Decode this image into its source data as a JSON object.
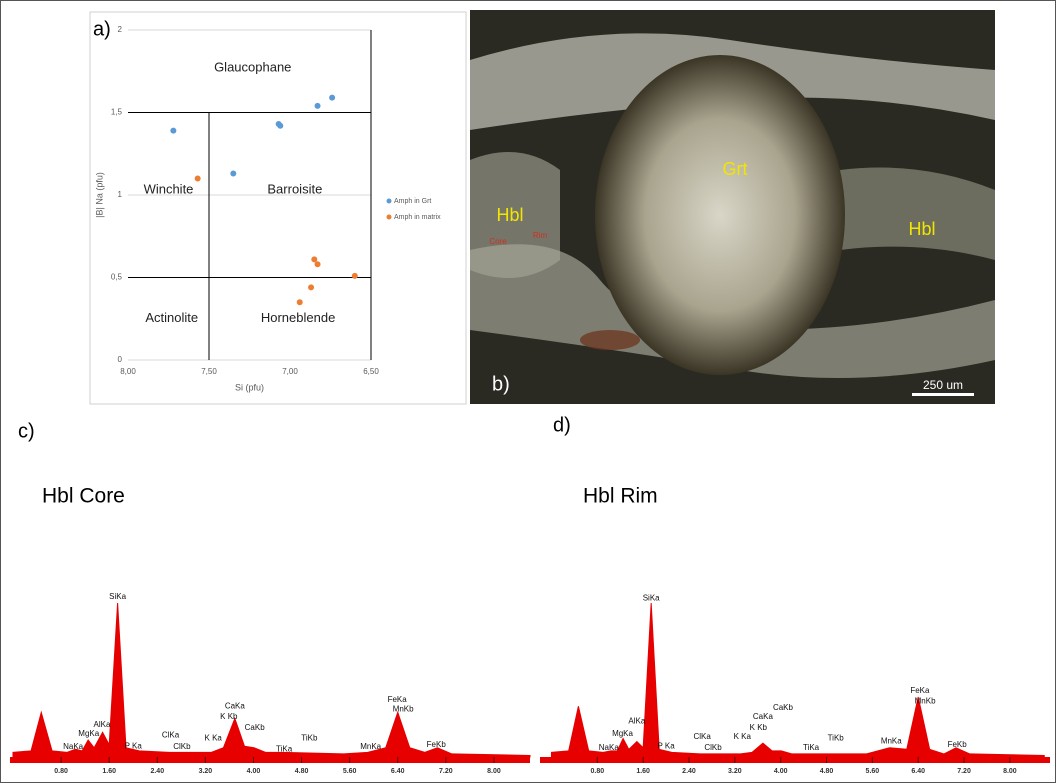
{
  "chart_data": [
    {
      "type": "scatter",
      "panel": "a)",
      "xlabel": "Si (pfu)",
      "ylabel": "|B| Na (pfu)",
      "xlim": [
        8,
        6.5
      ],
      "xticks": [
        {
          "value": 8,
          "label": "8,00"
        },
        {
          "value": 7.5,
          "label": "7,50"
        },
        {
          "value": 7,
          "label": "7,00"
        },
        {
          "value": 6.5,
          "label": "6,50"
        }
      ],
      "ylim": [
        0,
        2
      ],
      "yticks": [
        0,
        {
          "value": 0.5,
          "label": "0,5"
        },
        1,
        {
          "value": 1.5,
          "label": "1,5"
        },
        2
      ],
      "grid": true,
      "legend": "right",
      "annotations": [
        {
          "text": "Glaucophane",
          "x": 7.23,
          "y": 1.77
        },
        {
          "text": "Winchite",
          "x": 7.75,
          "y": 1.03
        },
        {
          "text": "Barroisite",
          "x": 6.97,
          "y": 1.03
        },
        {
          "text": "Actinolite",
          "x": 7.73,
          "y": 0.25
        },
        {
          "text": "Horneblende",
          "x": 6.95,
          "y": 0.25
        }
      ],
      "series": [
        {
          "name": "Amph in Grt",
          "color": "#5b9bd5",
          "x": [
            7.72,
            7.35,
            7.07,
            7.06,
            6.83,
            6.74
          ],
          "values": [
            1.39,
            1.13,
            1.43,
            1.42,
            1.54,
            1.59
          ]
        },
        {
          "name": "Amph in matrix",
          "color": "#ed7d31",
          "x": [
            7.57,
            6.85,
            6.83,
            6.6,
            6.87,
            6.94
          ],
          "values": [
            1.1,
            0.61,
            0.58,
            0.51,
            0.44,
            0.35
          ]
        }
      ]
    },
    {
      "type": "spectrum",
      "panel": "c)",
      "title": "Hbl Core",
      "color": "#e60000",
      "xlim": [
        -0.05,
        8.6
      ],
      "xticks": [
        {
          "value": 0.8,
          "label": "0.80"
        },
        {
          "value": 1.6,
          "label": "1.60"
        },
        {
          "value": 2.4,
          "label": "2.40"
        },
        {
          "value": 3.2,
          "label": "3.20"
        },
        {
          "value": 4,
          "label": "4.00"
        },
        {
          "value": 4.8,
          "label": "4.80"
        },
        {
          "value": 5.6,
          "label": "5.60"
        },
        {
          "value": 6.4,
          "label": "6.40"
        },
        {
          "value": 7.2,
          "label": "7.20"
        },
        {
          "value": 8,
          "label": "8.00"
        }
      ],
      "ylim": [
        0,
        100
      ],
      "x": [
        0,
        0.3,
        0.47,
        0.65,
        0.9,
        1.04,
        1.15,
        1.25,
        1.35,
        1.49,
        1.6,
        1.74,
        1.88,
        2.1,
        2.6,
        3.3,
        3.5,
        3.69,
        3.85,
        4.01,
        4.2,
        4.5,
        5.5,
        5.9,
        6.2,
        6.4,
        6.6,
        6.85,
        7.06,
        7.3,
        8.6
      ],
      "values": [
        3,
        4,
        29,
        4,
        3,
        5,
        4,
        11,
        6,
        16,
        8,
        100,
        6,
        4,
        3,
        3,
        6,
        25,
        7,
        6,
        3,
        3,
        2,
        3,
        6,
        29,
        6,
        3,
        6,
        2,
        1
      ],
      "peak_labels": [
        {
          "text": "NaKa",
          "x": 1.0,
          "y": 6.5
        },
        {
          "text": "MgKa",
          "x": 1.26,
          "y": 15
        },
        {
          "text": "AlKa",
          "x": 1.48,
          "y": 21
        },
        {
          "text": "SiKa",
          "x": 1.74,
          "y": 104
        },
        {
          "text": "P Ka",
          "x": 2.0,
          "y": 7
        },
        {
          "text": "ClKa",
          "x": 2.62,
          "y": 14
        },
        {
          "text": "ClKb",
          "x": 2.81,
          "y": 6.5
        },
        {
          "text": "K Ka",
          "x": 3.33,
          "y": 12
        },
        {
          "text": "CaKa",
          "x": 3.69,
          "y": 33
        },
        {
          "text": "K Kb",
          "x": 3.59,
          "y": 26
        },
        {
          "text": "CaKb",
          "x": 4.02,
          "y": 19
        },
        {
          "text": "TiKa",
          "x": 4.51,
          "y": 5
        },
        {
          "text": "TiKb",
          "x": 4.93,
          "y": 12
        },
        {
          "text": "MnKa",
          "x": 5.95,
          "y": 6.5
        },
        {
          "text": "FeKa",
          "x": 6.39,
          "y": 37
        },
        {
          "text": "MnKb",
          "x": 6.49,
          "y": 31
        },
        {
          "text": "FeKb",
          "x": 7.04,
          "y": 8
        }
      ]
    },
    {
      "type": "spectrum",
      "panel": "d)",
      "title": "Hbl Rim",
      "color": "#e60000",
      "xlim": [
        -0.2,
        8.7
      ],
      "xticks": [
        {
          "value": 0.8,
          "label": "0.80"
        },
        {
          "value": 1.6,
          "label": "1.60"
        },
        {
          "value": 2.4,
          "label": "2.40"
        },
        {
          "value": 3.2,
          "label": "3.20"
        },
        {
          "value": 4,
          "label": "4.00"
        },
        {
          "value": 4.8,
          "label": "4.80"
        },
        {
          "value": 5.6,
          "label": "5.60"
        },
        {
          "value": 6.4,
          "label": "6.40"
        },
        {
          "value": 7.2,
          "label": "7.20"
        },
        {
          "value": 8,
          "label": "8.00"
        }
      ],
      "ylim": [
        0,
        100
      ],
      "x": [
        0,
        0.3,
        0.47,
        0.65,
        0.9,
        1.04,
        1.15,
        1.25,
        1.35,
        1.49,
        1.6,
        1.74,
        1.88,
        2.1,
        2.6,
        3.3,
        3.5,
        3.69,
        3.85,
        4.01,
        4.2,
        4.5,
        5.5,
        5.9,
        6.2,
        6.4,
        6.6,
        6.85,
        7.06,
        7.3,
        8.6
      ],
      "values": [
        3,
        4,
        33,
        4,
        3,
        4,
        4,
        12,
        5,
        10,
        6,
        100,
        5,
        3,
        2,
        2,
        3,
        9,
        4,
        4,
        2,
        2,
        2,
        6,
        5,
        39,
        5,
        2,
        6,
        2,
        1
      ],
      "peak_labels": [
        {
          "text": "NaKa",
          "x": 1.0,
          "y": 6
        },
        {
          "text": "MgKa",
          "x": 1.24,
          "y": 15
        },
        {
          "text": "AlKa",
          "x": 1.49,
          "y": 23
        },
        {
          "text": "SiKa",
          "x": 1.74,
          "y": 103
        },
        {
          "text": "P Ka",
          "x": 2.0,
          "y": 7
        },
        {
          "text": "ClKa",
          "x": 2.63,
          "y": 13
        },
        {
          "text": "ClKb",
          "x": 2.82,
          "y": 6
        },
        {
          "text": "K Ka",
          "x": 3.33,
          "y": 13
        },
        {
          "text": "CaKa",
          "x": 3.69,
          "y": 26
        },
        {
          "text": "K Kb",
          "x": 3.61,
          "y": 19
        },
        {
          "text": "CaKb",
          "x": 4.04,
          "y": 32
        },
        {
          "text": "TiKa",
          "x": 4.53,
          "y": 6
        },
        {
          "text": "TiKb",
          "x": 4.96,
          "y": 12
        },
        {
          "text": "MnKa",
          "x": 5.93,
          "y": 10
        },
        {
          "text": "FeKa",
          "x": 6.43,
          "y": 43
        },
        {
          "text": "MnKb",
          "x": 6.52,
          "y": 36
        },
        {
          "text": "FeKb",
          "x": 7.08,
          "y": 8
        }
      ]
    }
  ],
  "photo": {
    "panel": "b)",
    "labels": [
      "Grt",
      "Hbl",
      "Hbl",
      "Core",
      "Rim"
    ],
    "scale_bar": "250 um"
  }
}
